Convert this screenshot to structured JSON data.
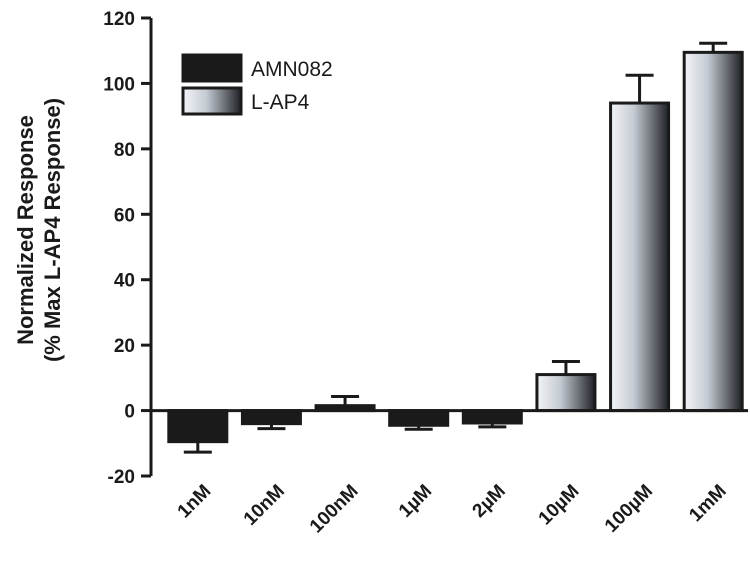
{
  "chart_data": {
    "type": "bar",
    "ylabel_line1": "Normalized Response",
    "ylabel_line2": "(% Max L-AP4 Response)",
    "xlabel": "",
    "ylim": [
      -20,
      120
    ],
    "yticks": [
      -20,
      0,
      20,
      40,
      60,
      80,
      100,
      120
    ],
    "ytick_labels": [
      "-20",
      "0",
      "20",
      "40",
      "60",
      "80",
      "100",
      "120"
    ],
    "categories": [
      "1nM",
      "10nM",
      "100nM",
      "1µM",
      "2µM",
      "10µM",
      "100µM",
      "1mM"
    ],
    "legend_position": "top-left",
    "series": [
      {
        "name": "AMN082",
        "color": "#1a1a1a",
        "bars": [
          {
            "category": "1nM",
            "value": -9.5,
            "error": 3.2
          },
          {
            "category": "10nM",
            "value": -4.0,
            "error": 1.5
          },
          {
            "category": "100nM",
            "value": 1.5,
            "error": 2.8
          },
          {
            "category": "1µM",
            "value": -4.5,
            "error": 1.2
          },
          {
            "category": "2µM",
            "value": -3.8,
            "error": 1.2
          }
        ]
      },
      {
        "name": "L-AP4",
        "color": "gradient-gray",
        "bars": [
          {
            "category": "10µM",
            "value": 11.0,
            "error": 4.0
          },
          {
            "category": "100µM",
            "value": 94.0,
            "error": 8.5
          },
          {
            "category": "1mM",
            "value": 109.5,
            "error": 2.8
          }
        ]
      }
    ]
  }
}
